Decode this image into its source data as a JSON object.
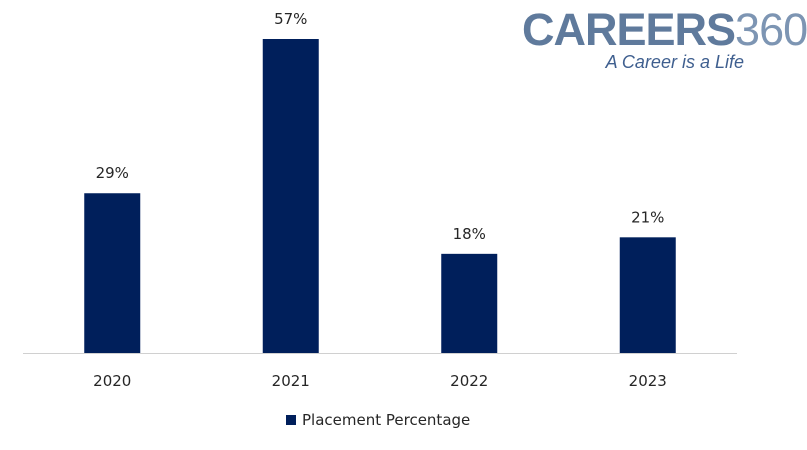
{
  "colors": {
    "bar": "#001f5b",
    "axis": "#d0d0d0",
    "label_text": "#262626"
  },
  "logo": {
    "word": "CAREERS",
    "number": "360",
    "tagline": "A Career is a Life"
  },
  "chart_data": {
    "type": "bar",
    "categories": [
      "2020",
      "2021",
      "2022",
      "2023"
    ],
    "series": [
      {
        "name": "Placement Percentage",
        "values": [
          29,
          57,
          18,
          21
        ],
        "labels": [
          "29%",
          "57%",
          "18%",
          "21%"
        ]
      }
    ],
    "title": "",
    "xlabel": "",
    "ylabel": "",
    "ylim": [
      0,
      57
    ],
    "grid": false,
    "legend": "bottom-center",
    "data_labels": true
  }
}
